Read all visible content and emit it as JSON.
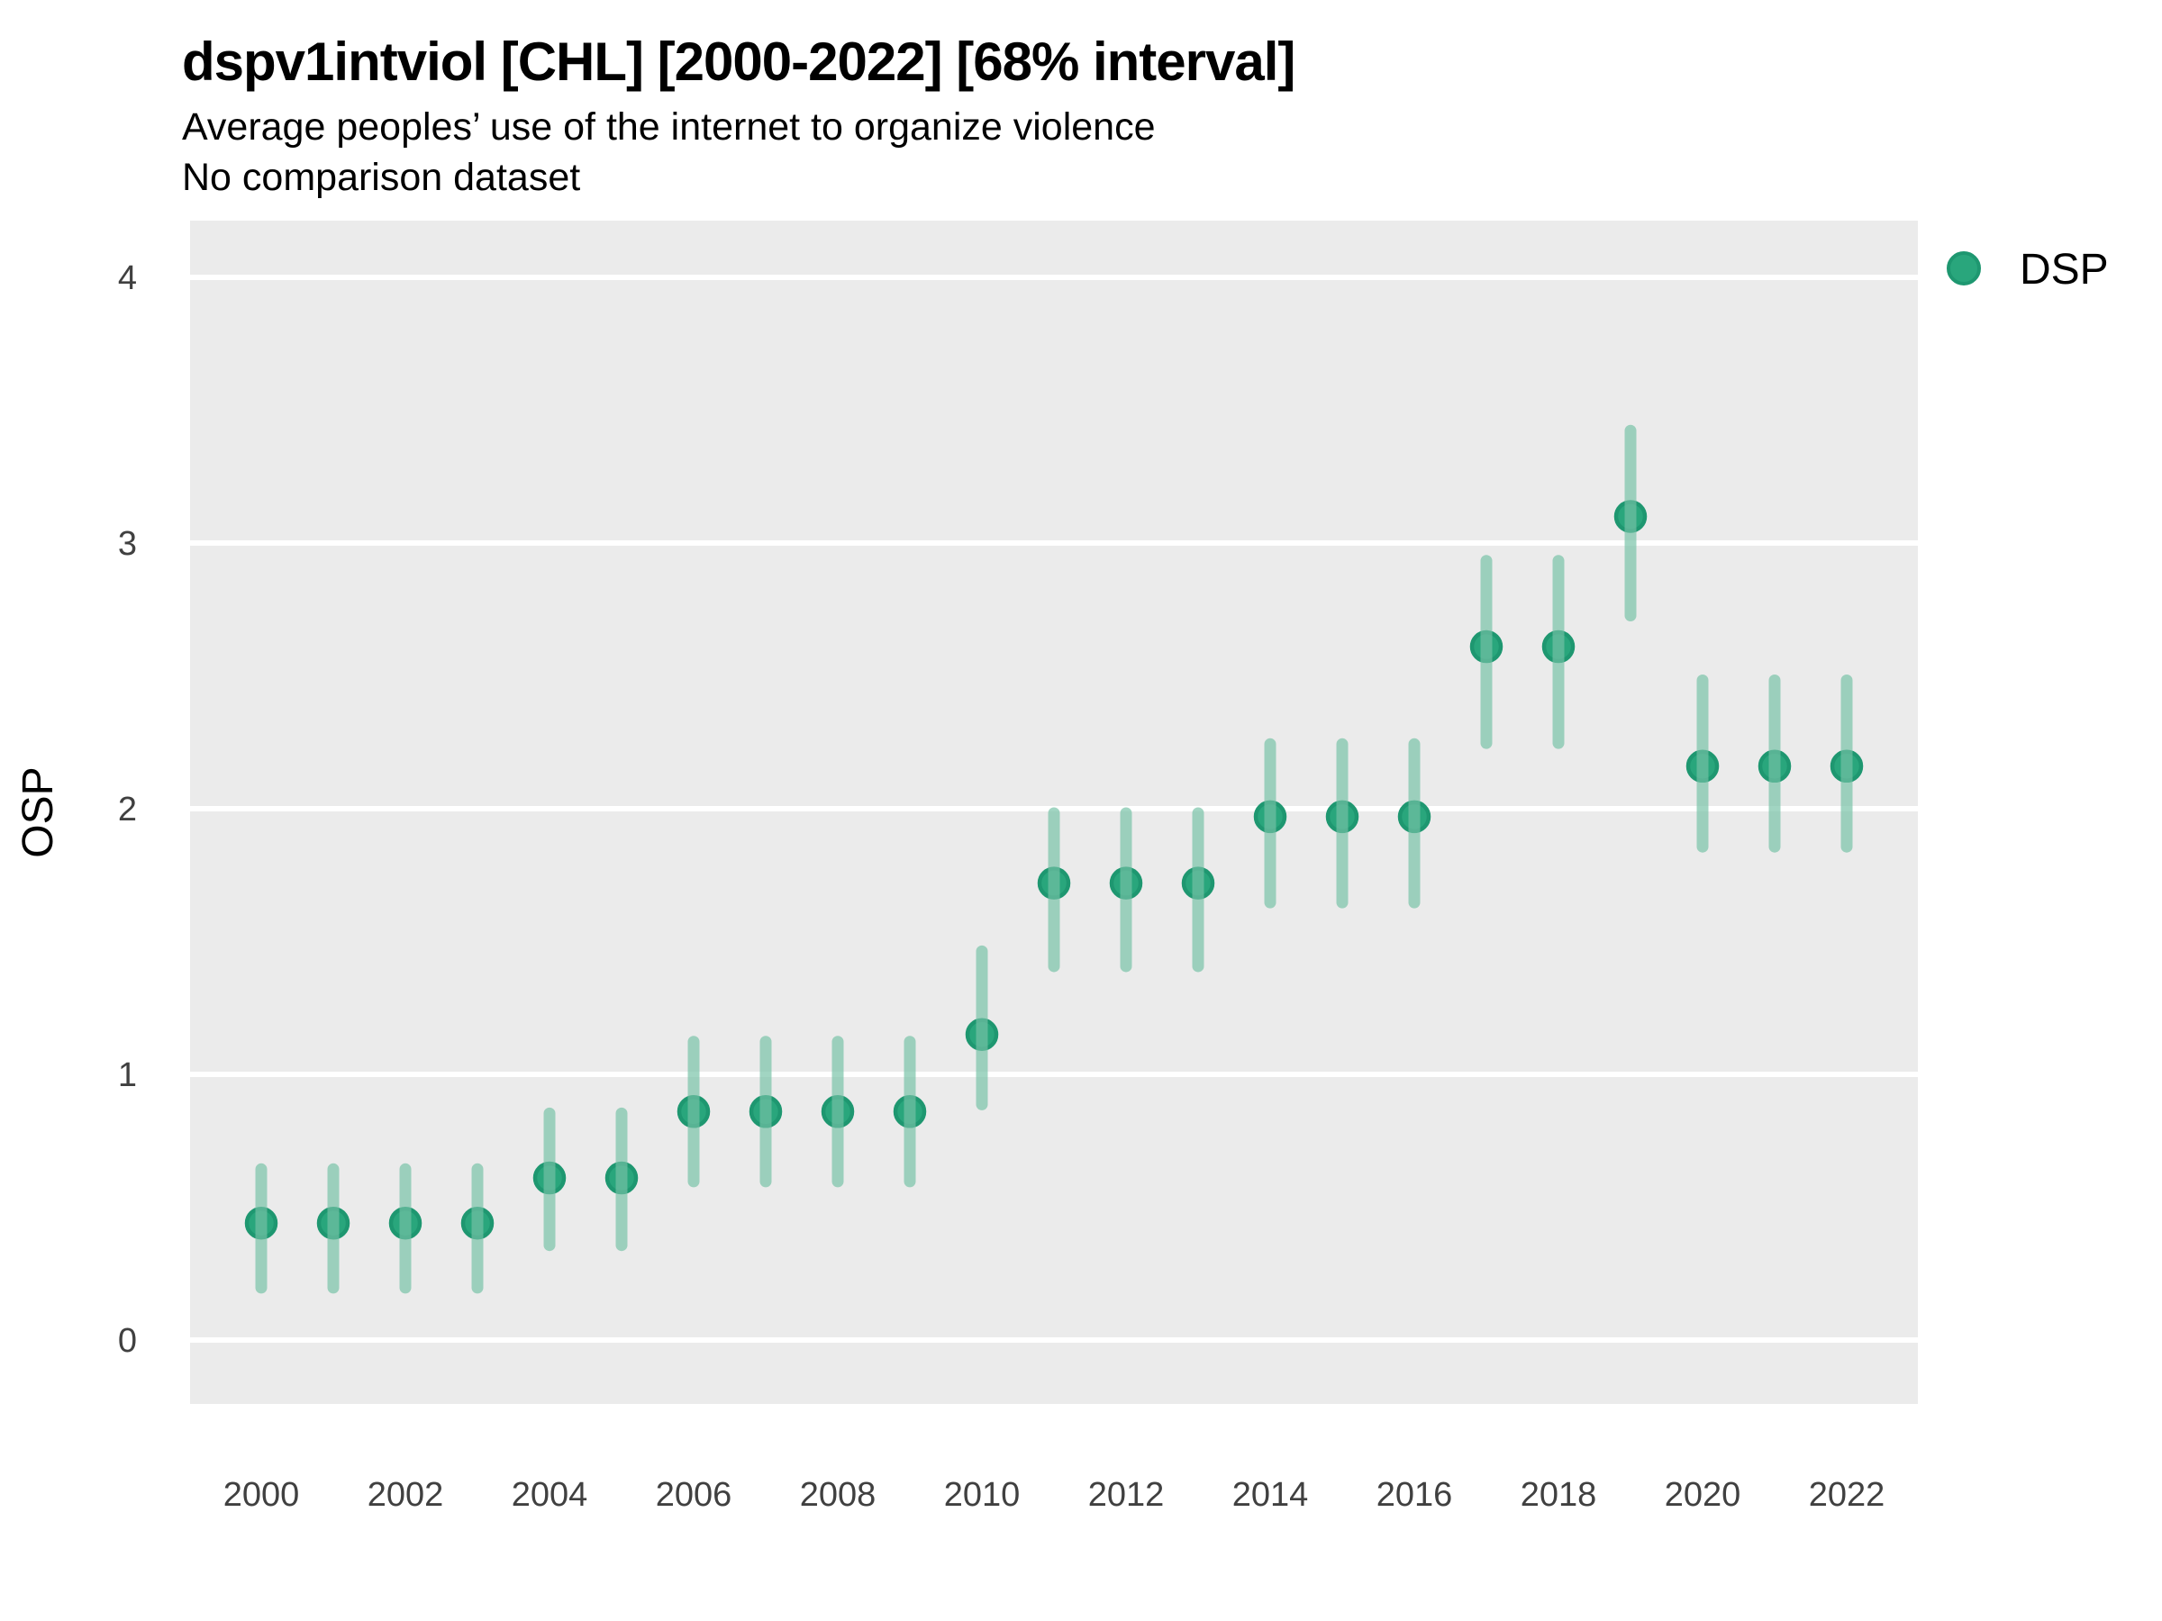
{
  "title": "dspv1intviol [CHL] [2000-2022] [68% interval]",
  "subtitle": "Average peoples’ use of the internet to organize violence",
  "note": "No comparison dataset",
  "legend": {
    "label": "DSP"
  },
  "colors": {
    "background": "#ffffff",
    "panel_background": "#ebebeb",
    "gridline": "#ffffff",
    "point_fill": "#29a67c",
    "point_stroke": "#1e9770",
    "interval_color": "#75c1a5",
    "interval_alpha": 0.68,
    "tick_label_color": "#404040",
    "text_color": "#000000"
  },
  "chart_data": {
    "type": "scatter",
    "title": "dspv1intviol [CHL] [2000-2022] [68% interval]",
    "subtitle": "Average peoples’ use of the internet to organize violence",
    "note": "No comparison dataset",
    "xlabel": "",
    "ylabel": "OSP",
    "legend_entries": [
      "DSP"
    ],
    "legend_position": "right-top",
    "grid": "horizontal-major-only",
    "interval": "68%",
    "x_ticks": [
      2000,
      2002,
      2004,
      2006,
      2008,
      2010,
      2012,
      2014,
      2016,
      2018,
      2020,
      2022
    ],
    "y_ticks": [
      0,
      1,
      2,
      3,
      4
    ],
    "xlim": [
      1999,
      2023
    ],
    "ylim": [
      -0.24,
      4.21
    ],
    "series": [
      {
        "name": "DSP",
        "points": [
          {
            "year": 2000,
            "value": 0.44,
            "low": 0.18,
            "high": 0.66
          },
          {
            "year": 2001,
            "value": 0.44,
            "low": 0.18,
            "high": 0.66
          },
          {
            "year": 2002,
            "value": 0.44,
            "low": 0.18,
            "high": 0.66
          },
          {
            "year": 2003,
            "value": 0.44,
            "low": 0.18,
            "high": 0.66
          },
          {
            "year": 2004,
            "value": 0.61,
            "low": 0.34,
            "high": 0.87
          },
          {
            "year": 2005,
            "value": 0.61,
            "low": 0.34,
            "high": 0.87
          },
          {
            "year": 2006,
            "value": 0.86,
            "low": 0.58,
            "high": 1.14
          },
          {
            "year": 2007,
            "value": 0.86,
            "low": 0.58,
            "high": 1.14
          },
          {
            "year": 2008,
            "value": 0.86,
            "low": 0.58,
            "high": 1.14
          },
          {
            "year": 2009,
            "value": 0.86,
            "low": 0.58,
            "high": 1.14
          },
          {
            "year": 2010,
            "value": 1.15,
            "low": 0.87,
            "high": 1.48
          },
          {
            "year": 2011,
            "value": 1.72,
            "low": 1.39,
            "high": 2.0
          },
          {
            "year": 2012,
            "value": 1.72,
            "low": 1.39,
            "high": 2.0
          },
          {
            "year": 2013,
            "value": 1.72,
            "low": 1.39,
            "high": 2.0
          },
          {
            "year": 2014,
            "value": 1.97,
            "low": 1.63,
            "high": 2.26
          },
          {
            "year": 2015,
            "value": 1.97,
            "low": 1.63,
            "high": 2.26
          },
          {
            "year": 2016,
            "value": 1.97,
            "low": 1.63,
            "high": 2.26
          },
          {
            "year": 2017,
            "value": 2.61,
            "low": 2.23,
            "high": 2.95
          },
          {
            "year": 2018,
            "value": 2.61,
            "low": 2.23,
            "high": 2.95
          },
          {
            "year": 2019,
            "value": 3.1,
            "low": 2.71,
            "high": 3.44
          },
          {
            "year": 2020,
            "value": 2.16,
            "low": 1.84,
            "high": 2.5
          },
          {
            "year": 2021,
            "value": 2.16,
            "low": 1.84,
            "high": 2.5
          },
          {
            "year": 2022,
            "value": 2.16,
            "low": 1.84,
            "high": 2.5
          }
        ]
      }
    ]
  }
}
